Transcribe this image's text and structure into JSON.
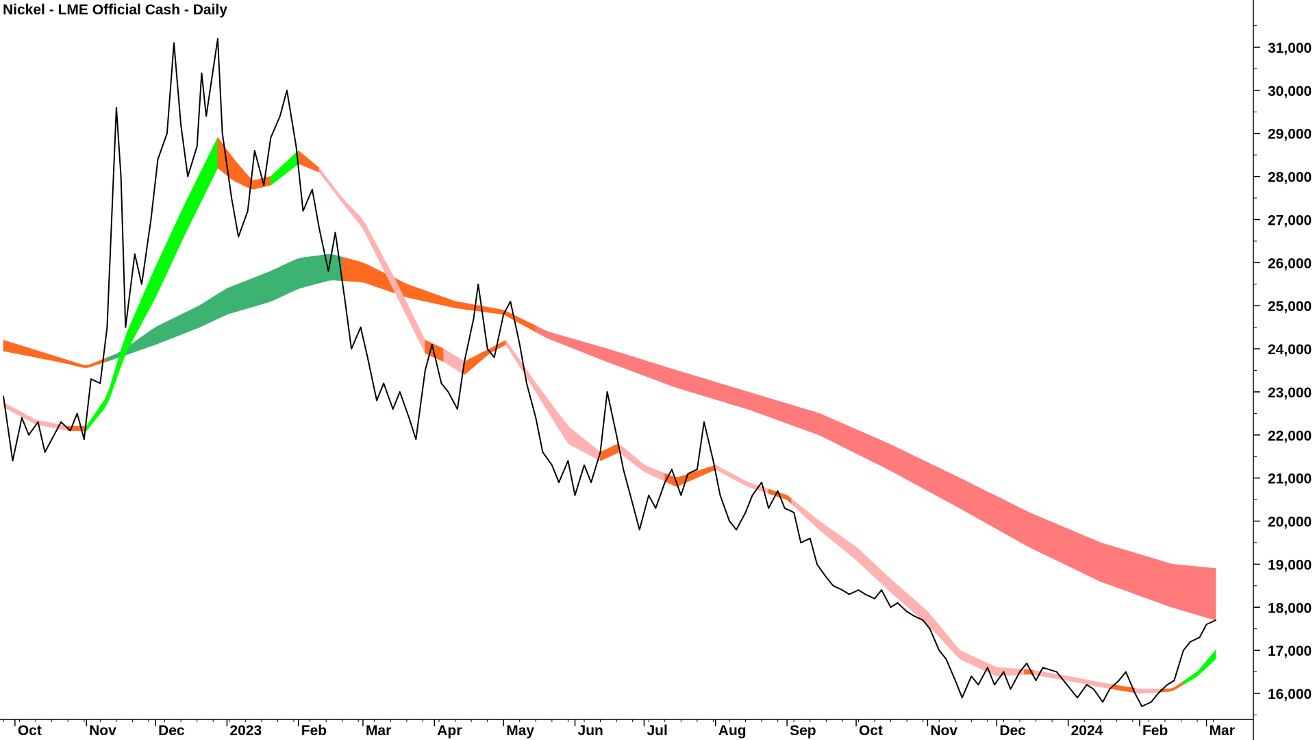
{
  "chart_data": {
    "type": "line",
    "title": "Nickel - LME Official Cash - Daily",
    "xlabel": "",
    "ylabel": "",
    "ylim": [
      15400,
      32200
    ],
    "grid": false,
    "x_ticks": [
      {
        "label": "Oct",
        "date": "2022-10-01"
      },
      {
        "label": "Nov",
        "date": "2022-11-01"
      },
      {
        "label": "Dec",
        "date": "2022-12-01"
      },
      {
        "label": "2023",
        "date": "2023-01-01"
      },
      {
        "label": "Feb",
        "date": "2023-02-01"
      },
      {
        "label": "Mar",
        "date": "2023-03-01"
      },
      {
        "label": "Apr",
        "date": "2023-04-01"
      },
      {
        "label": "May",
        "date": "2023-05-01"
      },
      {
        "label": "Jun",
        "date": "2023-06-01"
      },
      {
        "label": "Jul",
        "date": "2023-07-01"
      },
      {
        "label": "Aug",
        "date": "2023-08-01"
      },
      {
        "label": "Sep",
        "date": "2023-09-01"
      },
      {
        "label": "Oct",
        "date": "2023-10-01"
      },
      {
        "label": "Nov",
        "date": "2023-11-01"
      },
      {
        "label": "Dec",
        "date": "2023-12-01"
      },
      {
        "label": "2024",
        "date": "2024-01-01"
      },
      {
        "label": "Feb",
        "date": "2024-02-01"
      },
      {
        "label": "Mar",
        "date": "2024-03-01"
      }
    ],
    "y_ticks": [
      {
        "value": 16000,
        "label": "16,000"
      },
      {
        "value": 17000,
        "label": "17,000"
      },
      {
        "value": 18000,
        "label": "18,000"
      },
      {
        "value": 19000,
        "label": "19,000"
      },
      {
        "value": 20000,
        "label": "20,000"
      },
      {
        "value": 21000,
        "label": "21,000"
      },
      {
        "value": 22000,
        "label": "22,000"
      },
      {
        "value": 23000,
        "label": "23,000"
      },
      {
        "value": 24000,
        "label": "24,000"
      },
      {
        "value": 25000,
        "label": "25,000"
      },
      {
        "value": 26000,
        "label": "26,000"
      },
      {
        "value": 27000,
        "label": "27,000"
      },
      {
        "value": 28000,
        "label": "28,000"
      },
      {
        "value": 29000,
        "label": "29,000"
      },
      {
        "value": 30000,
        "label": "30,000"
      },
      {
        "value": 31000,
        "label": "31,000"
      }
    ],
    "colors": {
      "price": "#000000",
      "short_up": "#00ff00",
      "short_down_rising": "#ff6a21",
      "short_down": "#ffb2b2",
      "long_up": "#3cb371",
      "long_down_rising": "#ff6a21",
      "long_down": "#ff7b7b"
    },
    "price": [
      [
        "2022-09-26",
        22900
      ],
      [
        "2022-09-30",
        21400
      ],
      [
        "2022-10-04",
        22400
      ],
      [
        "2022-10-07",
        22000
      ],
      [
        "2022-10-11",
        22300
      ],
      [
        "2022-10-14",
        21600
      ],
      [
        "2022-10-18",
        22000
      ],
      [
        "2022-10-21",
        22300
      ],
      [
        "2022-10-25",
        22100
      ],
      [
        "2022-10-28",
        22500
      ],
      [
        "2022-10-31",
        21900
      ],
      [
        "2022-11-03",
        23300
      ],
      [
        "2022-11-07",
        23200
      ],
      [
        "2022-11-10",
        24500
      ],
      [
        "2022-11-14",
        29600
      ],
      [
        "2022-11-16",
        28000
      ],
      [
        "2022-11-18",
        24500
      ],
      [
        "2022-11-22",
        26200
      ],
      [
        "2022-11-25",
        25500
      ],
      [
        "2022-11-29",
        27000
      ],
      [
        "2022-12-02",
        28400
      ],
      [
        "2022-12-06",
        29000
      ],
      [
        "2022-12-09",
        31100
      ],
      [
        "2022-12-12",
        29200
      ],
      [
        "2022-12-15",
        28000
      ],
      [
        "2022-12-19",
        28700
      ],
      [
        "2022-12-21",
        30400
      ],
      [
        "2022-12-23",
        29400
      ],
      [
        "2022-12-28",
        31200
      ],
      [
        "2022-12-30",
        29000
      ],
      [
        "2023-01-03",
        27500
      ],
      [
        "2023-01-06",
        26600
      ],
      [
        "2023-01-10",
        27200
      ],
      [
        "2023-01-13",
        28600
      ],
      [
        "2023-01-17",
        27800
      ],
      [
        "2023-01-20",
        28900
      ],
      [
        "2023-01-24",
        29400
      ],
      [
        "2023-01-27",
        30000
      ],
      [
        "2023-01-31",
        28700
      ],
      [
        "2023-02-03",
        27200
      ],
      [
        "2023-02-07",
        27700
      ],
      [
        "2023-02-10",
        26800
      ],
      [
        "2023-02-14",
        25800
      ],
      [
        "2023-02-17",
        26700
      ],
      [
        "2023-02-21",
        25200
      ],
      [
        "2023-02-24",
        24000
      ],
      [
        "2023-02-28",
        24500
      ],
      [
        "2023-03-03",
        23800
      ],
      [
        "2023-03-07",
        22800
      ],
      [
        "2023-03-10",
        23200
      ],
      [
        "2023-03-14",
        22600
      ],
      [
        "2023-03-17",
        23000
      ],
      [
        "2023-03-21",
        22400
      ],
      [
        "2023-03-24",
        21900
      ],
      [
        "2023-03-28",
        23500
      ],
      [
        "2023-03-31",
        24100
      ],
      [
        "2023-04-04",
        23200
      ],
      [
        "2023-04-07",
        23000
      ],
      [
        "2023-04-11",
        22600
      ],
      [
        "2023-04-14",
        23700
      ],
      [
        "2023-04-18",
        24700
      ],
      [
        "2023-04-20",
        25500
      ],
      [
        "2023-04-24",
        24000
      ],
      [
        "2023-04-27",
        23800
      ],
      [
        "2023-05-01",
        24800
      ],
      [
        "2023-05-04",
        25100
      ],
      [
        "2023-05-08",
        24100
      ],
      [
        "2023-05-11",
        23200
      ],
      [
        "2023-05-15",
        22400
      ],
      [
        "2023-05-18",
        21600
      ],
      [
        "2023-05-22",
        21300
      ],
      [
        "2023-05-25",
        20900
      ],
      [
        "2023-05-29",
        21400
      ],
      [
        "2023-06-01",
        20600
      ],
      [
        "2023-06-05",
        21300
      ],
      [
        "2023-06-08",
        20900
      ],
      [
        "2023-06-12",
        21600
      ],
      [
        "2023-06-15",
        23000
      ],
      [
        "2023-06-19",
        22000
      ],
      [
        "2023-06-22",
        21200
      ],
      [
        "2023-06-26",
        20400
      ],
      [
        "2023-06-29",
        19800
      ],
      [
        "2023-07-03",
        20600
      ],
      [
        "2023-07-06",
        20300
      ],
      [
        "2023-07-10",
        20900
      ],
      [
        "2023-07-13",
        21200
      ],
      [
        "2023-07-17",
        20600
      ],
      [
        "2023-07-20",
        21100
      ],
      [
        "2023-07-24",
        21200
      ],
      [
        "2023-07-27",
        22300
      ],
      [
        "2023-07-31",
        21400
      ],
      [
        "2023-08-03",
        20600
      ],
      [
        "2023-08-07",
        20000
      ],
      [
        "2023-08-10",
        19800
      ],
      [
        "2023-08-14",
        20200
      ],
      [
        "2023-08-17",
        20600
      ],
      [
        "2023-08-21",
        20900
      ],
      [
        "2023-08-24",
        20300
      ],
      [
        "2023-08-28",
        20700
      ],
      [
        "2023-08-31",
        20300
      ],
      [
        "2023-09-04",
        20200
      ],
      [
        "2023-09-07",
        19500
      ],
      [
        "2023-09-11",
        19600
      ],
      [
        "2023-09-14",
        19000
      ],
      [
        "2023-09-18",
        18700
      ],
      [
        "2023-09-21",
        18500
      ],
      [
        "2023-09-25",
        18400
      ],
      [
        "2023-09-28",
        18300
      ],
      [
        "2023-10-02",
        18400
      ],
      [
        "2023-10-05",
        18300
      ],
      [
        "2023-10-09",
        18200
      ],
      [
        "2023-10-12",
        18400
      ],
      [
        "2023-10-16",
        18000
      ],
      [
        "2023-10-19",
        18100
      ],
      [
        "2023-10-23",
        17900
      ],
      [
        "2023-10-26",
        17800
      ],
      [
        "2023-10-30",
        17700
      ],
      [
        "2023-11-02",
        17500
      ],
      [
        "2023-11-06",
        17000
      ],
      [
        "2023-11-09",
        16800
      ],
      [
        "2023-11-13",
        16300
      ],
      [
        "2023-11-16",
        15900
      ],
      [
        "2023-11-20",
        16400
      ],
      [
        "2023-11-23",
        16200
      ],
      [
        "2023-11-27",
        16600
      ],
      [
        "2023-11-30",
        16200
      ],
      [
        "2023-12-04",
        16500
      ],
      [
        "2023-12-07",
        16100
      ],
      [
        "2023-12-11",
        16500
      ],
      [
        "2023-12-14",
        16700
      ],
      [
        "2023-12-18",
        16300
      ],
      [
        "2023-12-21",
        16600
      ],
      [
        "2023-12-27",
        16500
      ],
      [
        "2024-01-02",
        16100
      ],
      [
        "2024-01-05",
        15900
      ],
      [
        "2024-01-09",
        16200
      ],
      [
        "2024-01-12",
        16100
      ],
      [
        "2024-01-16",
        15800
      ],
      [
        "2024-01-19",
        16100
      ],
      [
        "2024-01-23",
        16300
      ],
      [
        "2024-01-26",
        16500
      ],
      [
        "2024-01-30",
        16000
      ],
      [
        "2024-02-02",
        15700
      ],
      [
        "2024-02-06",
        15800
      ],
      [
        "2024-02-09",
        16000
      ],
      [
        "2024-02-13",
        16200
      ],
      [
        "2024-02-16",
        16300
      ],
      [
        "2024-02-20",
        17000
      ],
      [
        "2024-02-23",
        17200
      ],
      [
        "2024-02-27",
        17300
      ],
      [
        "2024-03-01",
        17600
      ],
      [
        "2024-03-05",
        17700
      ]
    ],
    "short_band": [
      [
        "2022-09-26",
        22750,
        22650
      ],
      [
        "2022-10-10",
        22350,
        22250
      ],
      [
        "2022-10-24",
        22200,
        22100
      ],
      [
        "2022-11-01",
        22200,
        22100
      ],
      [
        "2022-11-10",
        22900,
        22700
      ],
      [
        "2022-11-18",
        24300,
        23900
      ],
      [
        "2022-12-01",
        25900,
        25200
      ],
      [
        "2022-12-15",
        27500,
        26800
      ],
      [
        "2022-12-28",
        28900,
        28200
      ],
      [
        "2023-01-04",
        28400,
        27900
      ],
      [
        "2023-01-12",
        27900,
        27700
      ],
      [
        "2023-01-20",
        28000,
        27800
      ],
      [
        "2023-02-01",
        28600,
        28300
      ],
      [
        "2023-02-10",
        28200,
        28100
      ],
      [
        "2023-02-20",
        27500,
        27400
      ],
      [
        "2023-03-01",
        27000,
        26800
      ],
      [
        "2023-03-15",
        25600,
        25300
      ],
      [
        "2023-03-28",
        24200,
        23900
      ],
      [
        "2023-04-05",
        24000,
        23700
      ],
      [
        "2023-04-14",
        23700,
        23400
      ],
      [
        "2023-04-25",
        24000,
        23900
      ],
      [
        "2023-05-02",
        24200,
        24100
      ],
      [
        "2023-05-15",
        23200,
        23000
      ],
      [
        "2023-05-29",
        22200,
        21800
      ],
      [
        "2023-06-12",
        21600,
        21400
      ],
      [
        "2023-06-20",
        21800,
        21600
      ],
      [
        "2023-07-01",
        21300,
        21150
      ],
      [
        "2023-07-15",
        21000,
        20800
      ],
      [
        "2023-08-01",
        21300,
        21200
      ],
      [
        "2023-08-15",
        20900,
        20800
      ],
      [
        "2023-09-01",
        20600,
        20500
      ],
      [
        "2023-09-15",
        20000,
        19800
      ],
      [
        "2023-10-01",
        19400,
        19100
      ],
      [
        "2023-10-15",
        18700,
        18400
      ],
      [
        "2023-11-01",
        17900,
        17600
      ],
      [
        "2023-11-15",
        17000,
        16800
      ],
      [
        "2023-12-01",
        16600,
        16400
      ],
      [
        "2023-12-15",
        16550,
        16450
      ],
      [
        "2024-01-01",
        16400,
        16300
      ],
      [
        "2024-01-15",
        16250,
        16150
      ],
      [
        "2024-02-01",
        16100,
        16000
      ],
      [
        "2024-02-15",
        16100,
        16050
      ],
      [
        "2024-02-26",
        16500,
        16400
      ],
      [
        "2024-03-05",
        17000,
        16800
      ]
    ],
    "short_segments": [
      [
        "2022-09-26",
        "2022-10-24",
        "short_down"
      ],
      [
        "2022-10-24",
        "2022-11-01",
        "short_down_rising"
      ],
      [
        "2022-11-01",
        "2022-12-28",
        "short_up"
      ],
      [
        "2022-12-28",
        "2023-01-20",
        "short_down_rising"
      ],
      [
        "2023-01-20",
        "2023-02-01",
        "short_up"
      ],
      [
        "2023-02-01",
        "2023-02-10",
        "short_down_rising"
      ],
      [
        "2023-02-10",
        "2023-03-28",
        "short_down"
      ],
      [
        "2023-03-28",
        "2023-04-05",
        "short_down_rising"
      ],
      [
        "2023-04-05",
        "2023-04-14",
        "short_down"
      ],
      [
        "2023-04-14",
        "2023-05-02",
        "short_down_rising"
      ],
      [
        "2023-05-02",
        "2023-06-12",
        "short_down"
      ],
      [
        "2023-06-12",
        "2023-06-20",
        "short_down_rising"
      ],
      [
        "2023-06-20",
        "2023-07-10",
        "short_down"
      ],
      [
        "2023-07-10",
        "2023-08-01",
        "short_down_rising"
      ],
      [
        "2023-08-01",
        "2023-08-24",
        "short_down"
      ],
      [
        "2023-08-24",
        "2023-09-03",
        "short_down_rising"
      ],
      [
        "2023-09-03",
        "2023-12-13",
        "short_down"
      ],
      [
        "2023-12-13",
        "2023-12-17",
        "short_down_rising"
      ],
      [
        "2023-12-17",
        "2024-01-20",
        "short_down"
      ],
      [
        "2024-01-20",
        "2024-01-30",
        "short_down_rising"
      ],
      [
        "2024-01-30",
        "2024-02-10",
        "short_down"
      ],
      [
        "2024-02-10",
        "2024-02-20",
        "short_down_rising"
      ],
      [
        "2024-02-20",
        "2024-03-05",
        "short_up"
      ]
    ],
    "long_band": [
      [
        "2022-09-26",
        24200,
        23950
      ],
      [
        "2022-10-20",
        23800,
        23700
      ],
      [
        "2022-11-01",
        23600,
        23550
      ],
      [
        "2022-11-15",
        23900,
        23800
      ],
      [
        "2022-12-01",
        24500,
        24100
      ],
      [
        "2022-12-20",
        25000,
        24500
      ],
      [
        "2023-01-01",
        25400,
        24800
      ],
      [
        "2023-01-20",
        25800,
        25100
      ],
      [
        "2023-02-01",
        26100,
        25400
      ],
      [
        "2023-02-15",
        26200,
        25600
      ],
      [
        "2023-03-01",
        26000,
        25550
      ],
      [
        "2023-03-20",
        25500,
        25200
      ],
      [
        "2023-04-10",
        25100,
        24950
      ],
      [
        "2023-05-01",
        24900,
        24800
      ],
      [
        "2023-05-20",
        24400,
        24250
      ],
      [
        "2023-06-15",
        24000,
        23700
      ],
      [
        "2023-07-15",
        23500,
        23100
      ],
      [
        "2023-08-15",
        23000,
        22600
      ],
      [
        "2023-09-15",
        22500,
        22000
      ],
      [
        "2023-10-15",
        21800,
        21200
      ],
      [
        "2023-11-15",
        21000,
        20300
      ],
      [
        "2023-12-15",
        20200,
        19400
      ],
      [
        "2024-01-15",
        19500,
        18600
      ],
      [
        "2024-02-15",
        19000,
        18000
      ],
      [
        "2024-03-05",
        18900,
        17700
      ]
    ],
    "long_segments": [
      [
        "2022-09-26",
        "2022-11-10",
        "long_down_rising"
      ],
      [
        "2022-11-10",
        "2023-02-20",
        "long_up"
      ],
      [
        "2023-02-20",
        "2023-04-10",
        "long_down_rising"
      ],
      [
        "2023-04-10",
        "2023-05-15",
        "long_down_rising"
      ],
      [
        "2023-05-15",
        "2024-03-05",
        "long_down"
      ]
    ]
  }
}
